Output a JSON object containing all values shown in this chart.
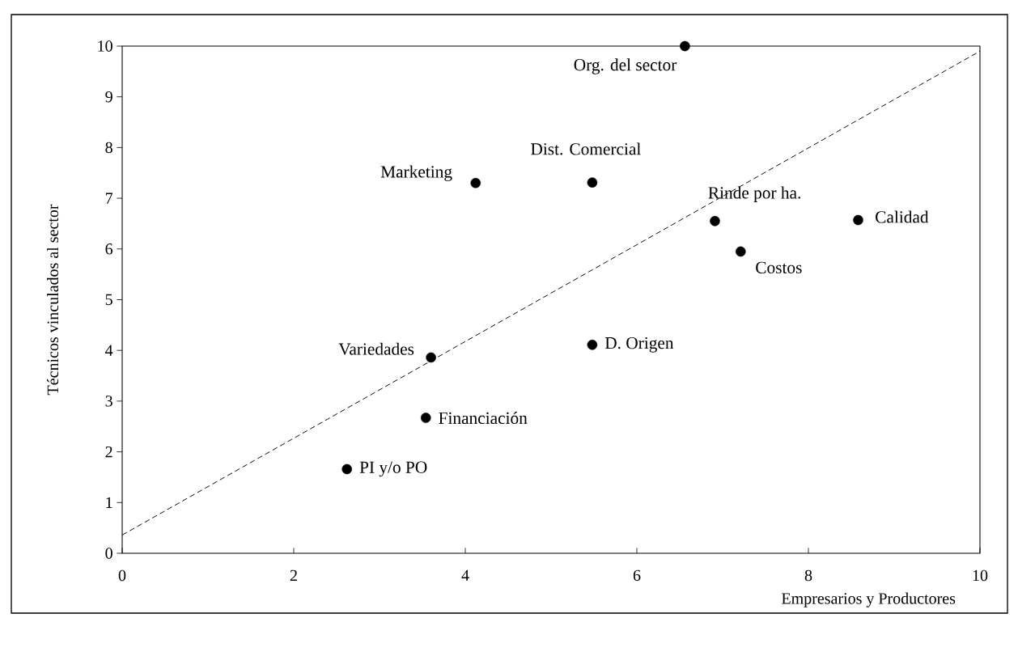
{
  "chart_data": {
    "type": "scatter",
    "xlabel": "Empresarios y Productores",
    "ylabel": "Técnicos vinculados al sector",
    "xlim": [
      0,
      10
    ],
    "ylim": [
      0,
      10
    ],
    "xticks": [
      0,
      2,
      4,
      6,
      8,
      10
    ],
    "yticks": [
      0,
      1,
      2,
      3,
      4,
      5,
      6,
      7,
      8,
      9,
      10
    ],
    "marker": "circle",
    "series": [
      {
        "color": "#000000",
        "x": [
          6.56,
          5.48,
          4.12,
          6.91,
          8.58,
          7.21,
          3.6,
          5.48,
          3.54,
          2.62
        ],
        "values": [
          10,
          7.31,
          7.3,
          6.55,
          6.57,
          5.95,
          3.86,
          4.11,
          2.67,
          1.66
        ]
      },
      {
        "type": "line",
        "color": "#000000",
        "marker": "none",
        "line_style": "dashed",
        "x": [
          0,
          10
        ],
        "values": [
          0.36,
          9.9
        ]
      }
    ],
    "annotations": [
      {
        "text": "Org. del sector",
        "x": 6.56,
        "y": 10
      },
      {
        "text": "Dist. Comercial",
        "x": 5.48,
        "y": 7.31
      },
      {
        "text": "Marketing",
        "x": 4.12,
        "y": 7.3
      },
      {
        "text": "Rinde por ha.",
        "x": 6.91,
        "y": 6.55
      },
      {
        "text": "Calidad",
        "x": 8.58,
        "y": 6.57
      },
      {
        "text": "Costos",
        "x": 7.21,
        "y": 5.95
      },
      {
        "text": "Variedades",
        "x": 3.6,
        "y": 3.86
      },
      {
        "text": "D. Origen",
        "x": 5.48,
        "y": 4.11
      },
      {
        "text": "Financiación",
        "x": 3.54,
        "y": 2.67
      },
      {
        "text": "PI y/o PO",
        "x": 2.62,
        "y": 1.66
      }
    ]
  }
}
